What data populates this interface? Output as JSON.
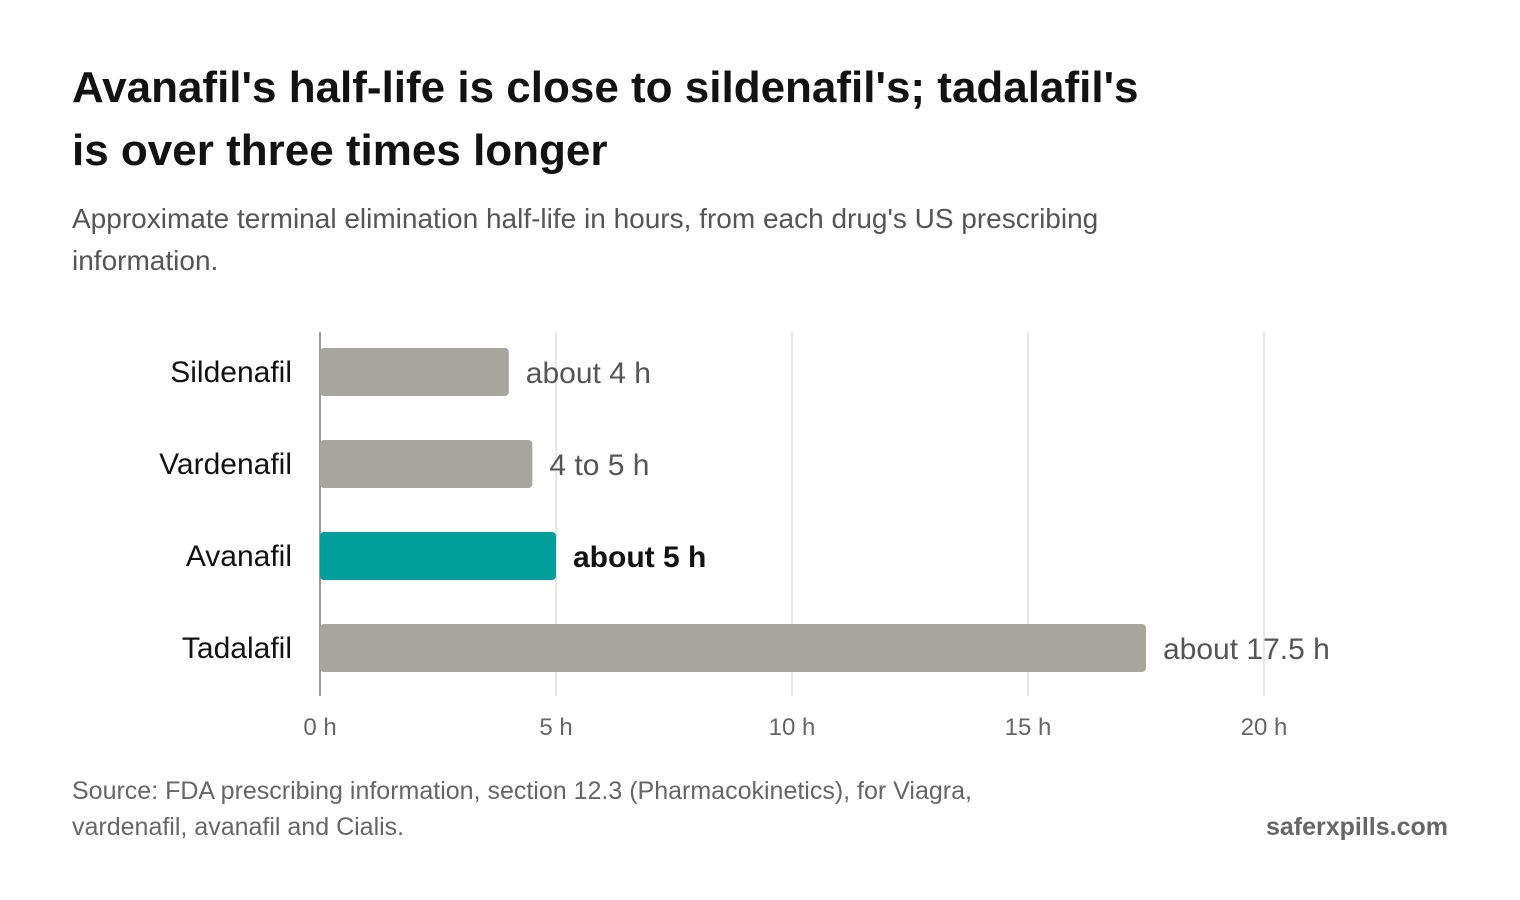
{
  "title": "Avanafil's half-life is close to sildenafil's; tadalafil's is over three times longer",
  "subtitle": "Approximate terminal elimination half-life in hours, from each drug's US prescribing information.",
  "source": "Source: FDA prescribing information, section 12.3 (Pharmacokinetics), for Viagra, vardenafil, avanafil and Cialis.",
  "brand": "saferxpills.com",
  "chart_data": {
    "type": "bar",
    "orientation": "horizontal",
    "categories": [
      "Sildenafil",
      "Vardenafil",
      "Avanafil",
      "Tadalafil"
    ],
    "values": [
      4,
      4.5,
      5,
      17.5
    ],
    "data_labels": [
      "about 4 h",
      "4 to 5 h",
      "about 5 h",
      "about 17.5 h"
    ],
    "highlight": "Avanafil",
    "xlim": [
      0,
      20
    ],
    "xticks": [
      0,
      5,
      10,
      15,
      20
    ],
    "xtick_labels": [
      "0 h",
      "5 h",
      "10 h",
      "15 h",
      "20 h"
    ],
    "grid": true,
    "colors": {
      "default": "#a6a69e",
      "highlight": "#009e9a"
    }
  }
}
